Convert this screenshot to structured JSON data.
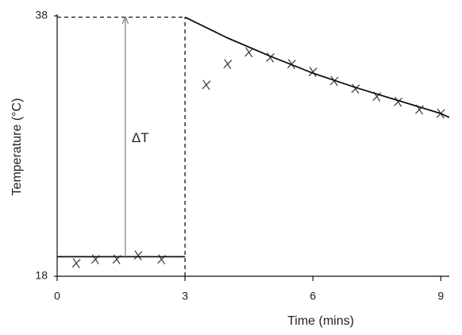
{
  "chart_data": {
    "type": "scatter",
    "x_label": "Time (mins)",
    "y_label": "Temperature (°C)",
    "xlim": [
      0,
      9.2
    ],
    "ylim": [
      18,
      38
    ],
    "xticks": [
      0,
      3,
      6,
      9
    ],
    "yticks": [
      18,
      38
    ],
    "series": [
      {
        "style": "marker",
        "color": "#333333",
        "x": [
          0.45,
          0.9,
          1.4,
          1.9,
          2.45
        ],
        "values": [
          19.0,
          19.3,
          19.3,
          19.6,
          19.3
        ]
      },
      {
        "style": "marker",
        "color": "#333333",
        "x": [
          3.5,
          4,
          4.5,
          5,
          5.5,
          6,
          6.5,
          7,
          7.5,
          8,
          8.5,
          9
        ],
        "values": [
          32.7,
          34.3,
          35.2,
          34.8,
          34.3,
          33.7,
          33.0,
          32.4,
          31.8,
          31.4,
          30.8,
          30.5
        ]
      },
      {
        "style": "solid",
        "color": "#111111",
        "x": [
          0,
          3
        ],
        "values": [
          19.5,
          19.5
        ]
      },
      {
        "style": "dashed",
        "color": "#111111",
        "x": [
          0,
          3
        ],
        "values": [
          37.9,
          37.9
        ]
      },
      {
        "style": "dashed",
        "color": "#111111",
        "x": [
          3,
          3
        ],
        "values": [
          18,
          37.9
        ]
      },
      {
        "style": "solid",
        "color": "#111111",
        "x": [
          3,
          4,
          5,
          6,
          7,
          8,
          9,
          9.2
        ],
        "values": [
          37.9,
          36.3,
          34.9,
          33.6,
          32.5,
          31.5,
          30.5,
          30.2
        ]
      }
    ],
    "delta": {
      "label": "ΔT",
      "x": 1.6,
      "from": 19.5,
      "to": 37.9,
      "color": "#888888"
    }
  }
}
